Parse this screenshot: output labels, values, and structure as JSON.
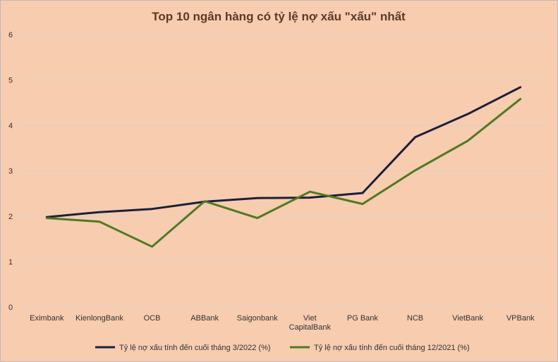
{
  "chart_data": {
    "type": "line",
    "title": "Top 10 ngân hàng có tỷ lệ nợ xấu \"xấu\" nhất",
    "categories": [
      [
        "Eximbank"
      ],
      [
        "KienlongBank"
      ],
      [
        "OCB"
      ],
      [
        "ABBank"
      ],
      [
        "Saigonbank"
      ],
      [
        "Viet",
        "CapitalBank"
      ],
      [
        "PG Bank"
      ],
      [
        "NCB"
      ],
      [
        "VietBank"
      ],
      [
        "VPBank"
      ]
    ],
    "ylim": [
      0,
      6
    ],
    "yticks": [
      0,
      1,
      2,
      3,
      4,
      5,
      6
    ],
    "grid": true,
    "legend_position": "bottom",
    "series": [
      {
        "name": "Tỷ lệ nợ xấu tính đến cuối tháng 3/2022 (%)",
        "color": "#1c1f3b",
        "values": [
          1.98,
          2.09,
          2.16,
          2.32,
          2.4,
          2.41,
          2.51,
          3.74,
          4.25,
          4.84
        ]
      },
      {
        "name": "Tỷ lệ nợ xấu tính đến cuối tháng 12/2021 (%)",
        "color": "#4e7a22",
        "values": [
          1.96,
          1.88,
          1.33,
          2.33,
          1.96,
          2.54,
          2.27,
          3.01,
          3.66,
          4.58
        ]
      }
    ]
  }
}
